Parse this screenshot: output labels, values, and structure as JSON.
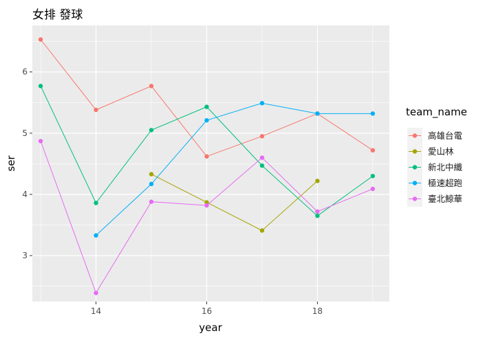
{
  "chart_data": {
    "type": "line",
    "title": "女排 發球",
    "xlabel": "year",
    "ylabel": "ser",
    "xlim": [
      12.85,
      19.3
    ],
    "ylim": [
      2.25,
      6.76
    ],
    "x_ticks": [
      14,
      16,
      18
    ],
    "y_ticks": [
      3,
      4,
      5,
      6
    ],
    "grid": true,
    "legend": {
      "title": "team_name",
      "placement": "right"
    },
    "series": [
      {
        "name": "高雄台電",
        "color": "#F8766D",
        "points": [
          [
            13,
            6.53
          ],
          [
            14,
            5.38
          ],
          [
            15,
            5.77
          ],
          [
            16,
            4.62
          ],
          [
            17,
            4.95
          ],
          [
            18,
            5.32
          ],
          [
            19,
            4.72
          ]
        ]
      },
      {
        "name": "愛山林",
        "color": "#A3A500",
        "points": [
          [
            15,
            4.33
          ],
          [
            16,
            3.87
          ],
          [
            17,
            3.41
          ],
          [
            18,
            4.22
          ]
        ]
      },
      {
        "name": "新北中纖",
        "color": "#00BF7D",
        "points": [
          [
            13,
            5.77
          ],
          [
            14,
            3.86
          ],
          [
            15,
            5.05
          ],
          [
            16,
            5.43
          ],
          [
            17,
            4.47
          ],
          [
            18,
            3.65
          ],
          [
            19,
            4.3
          ]
        ]
      },
      {
        "name": "極速超跑",
        "color": "#00B0F6",
        "points": [
          [
            14,
            3.33
          ],
          [
            15,
            4.17
          ],
          [
            16,
            5.21
          ],
          [
            17,
            5.49
          ],
          [
            18,
            5.32
          ],
          [
            19,
            5.32
          ]
        ]
      },
      {
        "name": "臺北鯨華",
        "color": "#E76BF3",
        "points": [
          [
            13,
            4.87
          ],
          [
            14,
            2.39
          ],
          [
            15,
            3.88
          ],
          [
            16,
            3.82
          ],
          [
            17,
            4.6
          ],
          [
            18,
            3.72
          ],
          [
            19,
            4.09
          ]
        ]
      }
    ]
  }
}
